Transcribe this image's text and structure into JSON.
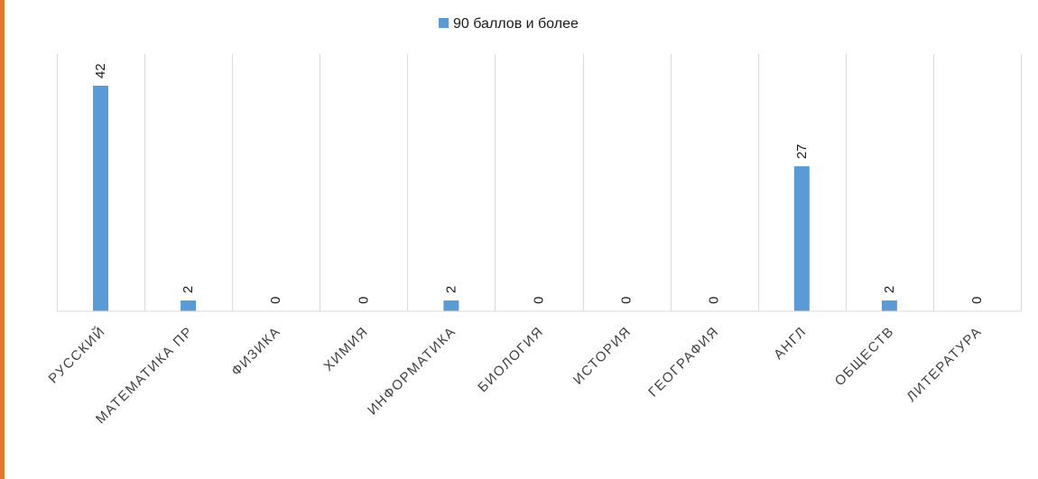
{
  "chart_data": {
    "type": "bar",
    "categories": [
      "РУССКИЙ",
      "МАТЕМАТИКА ПР",
      "ФИЗИКА",
      "ХИМИЯ",
      "ИНФОРМАТИКА",
      "БИОЛОГИЯ",
      "ИСТОРИЯ",
      "ГЕОГРАФИЯ",
      "АНГЛ",
      "ОБЩЕСТВ",
      "ЛИТЕРАТУРА"
    ],
    "series": [
      {
        "name": "90 баллов и более",
        "values": [
          42,
          2,
          0,
          0,
          2,
          0,
          0,
          0,
          27,
          2,
          0
        ],
        "color": "#5B9BD5"
      }
    ],
    "ylim": [
      0,
      42
    ],
    "grid": "vertical-category-separators",
    "legend_position": "top-center",
    "data_labels": true
  },
  "frame": {
    "accent_color": "#E07B2E"
  }
}
